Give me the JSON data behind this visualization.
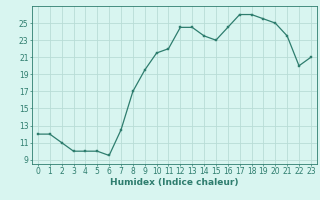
{
  "x": [
    0,
    1,
    2,
    3,
    4,
    5,
    6,
    7,
    8,
    9,
    10,
    11,
    12,
    13,
    14,
    15,
    16,
    17,
    18,
    19,
    20,
    21,
    22,
    23
  ],
  "y": [
    12,
    12,
    11,
    10,
    10,
    10,
    9.5,
    12.5,
    17,
    19.5,
    21.5,
    22,
    24.5,
    24.5,
    23.5,
    23,
    24.5,
    26,
    26,
    25.5,
    25,
    23.5,
    20,
    21
  ],
  "line_color": "#2e7d6e",
  "marker_color": "#2e7d6e",
  "bg_color": "#d8f5f0",
  "grid_color": "#b8ddd6",
  "xlabel": "Humidex (Indice chaleur)",
  "xlim": [
    -0.5,
    23.5
  ],
  "ylim": [
    8.5,
    27
  ],
  "yticks": [
    9,
    11,
    13,
    15,
    17,
    19,
    21,
    23,
    25
  ],
  "xtick_labels": [
    "0",
    "1",
    "2",
    "3",
    "4",
    "5",
    "6",
    "7",
    "8",
    "9",
    "10",
    "11",
    "12",
    "13",
    "14",
    "15",
    "16",
    "17",
    "18",
    "19",
    "20",
    "21",
    "22",
    "23"
  ],
  "label_fontsize": 6.5,
  "tick_fontsize": 5.5
}
